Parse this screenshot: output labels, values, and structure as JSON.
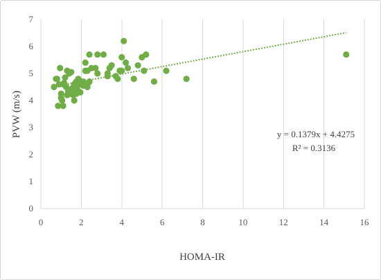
{
  "chart_data": {
    "type": "scatter",
    "title": "",
    "xlabel": "HOMA-IR",
    "ylabel": "PVW (m/s)",
    "xlim": [
      0,
      16
    ],
    "ylim": [
      0,
      7
    ],
    "x_ticks": [
      0,
      2,
      4,
      6,
      8,
      10,
      12,
      14,
      16
    ],
    "y_ticks": [
      0,
      1,
      2,
      3,
      4,
      5,
      6,
      7
    ],
    "grid": {
      "vertical": true,
      "horizontal": false
    },
    "legend": "none",
    "point_color": "#70ad47",
    "series": [
      {
        "marker": "circle",
        "points": [
          [
            0.65,
            4.5
          ],
          [
            0.75,
            4.8
          ],
          [
            0.8,
            4.8
          ],
          [
            0.85,
            3.8
          ],
          [
            0.9,
            4.6
          ],
          [
            0.95,
            5.2
          ],
          [
            1.0,
            4.25
          ],
          [
            1.0,
            4.1
          ],
          [
            1.05,
            4.0
          ],
          [
            1.1,
            3.8
          ],
          [
            1.1,
            4.6
          ],
          [
            1.15,
            4.65
          ],
          [
            1.2,
            4.85
          ],
          [
            1.25,
            4.5
          ],
          [
            1.3,
            4.2
          ],
          [
            1.3,
            5.1
          ],
          [
            1.35,
            4.35
          ],
          [
            1.4,
            4.4
          ],
          [
            1.4,
            5.0
          ],
          [
            1.45,
            4.25
          ],
          [
            1.5,
            4.3
          ],
          [
            1.5,
            5.05
          ],
          [
            1.55,
            4.45
          ],
          [
            1.55,
            4.3
          ],
          [
            1.6,
            4.2
          ],
          [
            1.6,
            4.4
          ],
          [
            1.65,
            4.0
          ],
          [
            1.65,
            4.6
          ],
          [
            1.7,
            4.5
          ],
          [
            1.7,
            4.3
          ],
          [
            1.75,
            4.7
          ],
          [
            1.75,
            4.25
          ],
          [
            1.8,
            4.4
          ],
          [
            1.8,
            4.55
          ],
          [
            1.85,
            4.35
          ],
          [
            1.85,
            4.8
          ],
          [
            1.9,
            4.75
          ],
          [
            1.95,
            4.3
          ],
          [
            1.95,
            4.6
          ],
          [
            2.0,
            4.6
          ],
          [
            2.05,
            4.65
          ],
          [
            2.1,
            4.7
          ],
          [
            2.1,
            4.55
          ],
          [
            2.2,
            5.4
          ],
          [
            2.2,
            5.1
          ],
          [
            2.3,
            4.5
          ],
          [
            2.3,
            5.1
          ],
          [
            2.35,
            4.65
          ],
          [
            2.4,
            4.7
          ],
          [
            2.4,
            5.7
          ],
          [
            2.5,
            5.2
          ],
          [
            2.7,
            5.2
          ],
          [
            2.8,
            5.0
          ],
          [
            2.8,
            5.7
          ],
          [
            3.1,
            5.7
          ],
          [
            3.3,
            4.9
          ],
          [
            3.3,
            5.0
          ],
          [
            3.4,
            5.2
          ],
          [
            3.5,
            5.3
          ],
          [
            3.7,
            4.9
          ],
          [
            3.8,
            4.8
          ],
          [
            3.9,
            5.1
          ],
          [
            4.0,
            5.6
          ],
          [
            4.0,
            5.1
          ],
          [
            4.1,
            6.2
          ],
          [
            4.2,
            5.4
          ],
          [
            4.3,
            5.2
          ],
          [
            4.6,
            4.8
          ],
          [
            4.8,
            5.3
          ],
          [
            5.0,
            5.6
          ],
          [
            5.1,
            5.1
          ],
          [
            5.2,
            5.7
          ],
          [
            5.6,
            4.7
          ],
          [
            6.2,
            5.1
          ],
          [
            7.2,
            4.8
          ],
          [
            15.1,
            5.7
          ]
        ]
      }
    ],
    "trendline": {
      "slope": 0.1379,
      "intercept": 4.4275,
      "x_range": [
        0.65,
        15.1
      ],
      "equation": "y = 0.1379x + 4.4275",
      "r2": "R² = 0.3136"
    }
  }
}
